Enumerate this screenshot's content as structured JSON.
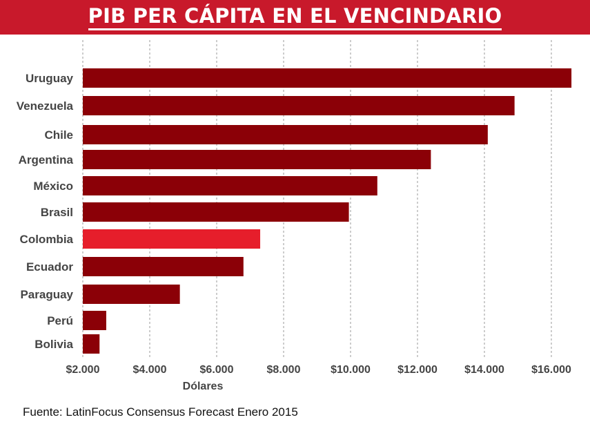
{
  "header": {
    "title": "PIB PER CÁPITA EN EL VENCINDARIO"
  },
  "footer": {
    "source": "Fuente: LatinFocus Consensus Forecast Enero 2015"
  },
  "colors": {
    "header_bg": "#c8192b",
    "bar": "#8b0007",
    "highlight_bar": "#e61e2b",
    "grid": "#9a9a9a"
  },
  "chart_data": {
    "type": "bar",
    "orientation": "horizontal",
    "title": "PIB PER CÁPITA EN EL VENCINDARIO",
    "xlabel": "Dólares",
    "ylabel": "",
    "xlim": [
      2000,
      16500
    ],
    "xticks": [
      2000,
      4000,
      6000,
      8000,
      10000,
      12000,
      14000,
      16000
    ],
    "xtick_labels": [
      "$2.000",
      "$4.000",
      "$6.000",
      "$8.000",
      "$10.000",
      "$12.000",
      "$14.000",
      "$16.000"
    ],
    "grid": "vertical dashed",
    "categories": [
      "Uruguay",
      "Venezuela",
      "Chile",
      "Argentina",
      "México",
      "Brasil",
      "Colombia",
      "Ecuador",
      "Paraguay",
      "Perú",
      "Bolivia"
    ],
    "values": [
      16600,
      14900,
      14100,
      12400,
      10800,
      9950,
      7300,
      6800,
      4900,
      2700,
      2500
    ],
    "highlight": "Colombia"
  }
}
